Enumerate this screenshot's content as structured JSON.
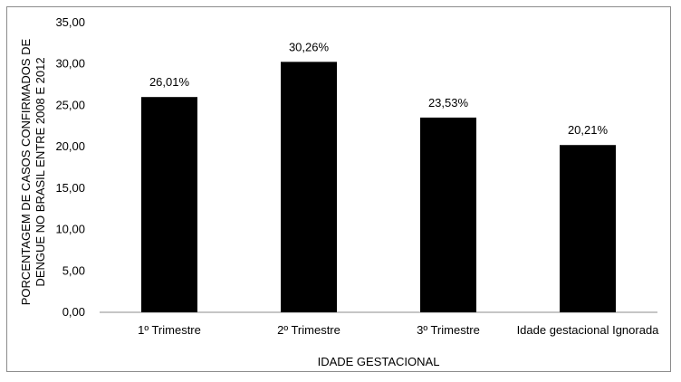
{
  "chart_data": {
    "type": "bar",
    "categories": [
      "1º Trimestre",
      "2º Trimestre",
      "3º Trimestre",
      "Idade gestacional Ignorada"
    ],
    "values": [
      26.01,
      30.26,
      23.53,
      20.21
    ],
    "data_labels": [
      "26,01%",
      "30,26%",
      "23,53%",
      "20,21%"
    ],
    "title": "",
    "xlabel": "IDADE GESTACIONAL",
    "ylabel_lines": [
      "PORCENTAGEM DE CASOS CONFIRMADOS DE",
      "DENGUE NO BRASIL ENTRE 2008 E 2012"
    ],
    "ylim": [
      0,
      35
    ],
    "yticks": [
      0,
      5,
      10,
      15,
      20,
      25,
      30,
      35
    ],
    "ytick_labels": [
      "0,00",
      "5,00",
      "10,00",
      "15,00",
      "20,00",
      "25,00",
      "30,00",
      "35,00"
    ],
    "grid": false,
    "legend": "none",
    "bar_color": "#000000"
  }
}
